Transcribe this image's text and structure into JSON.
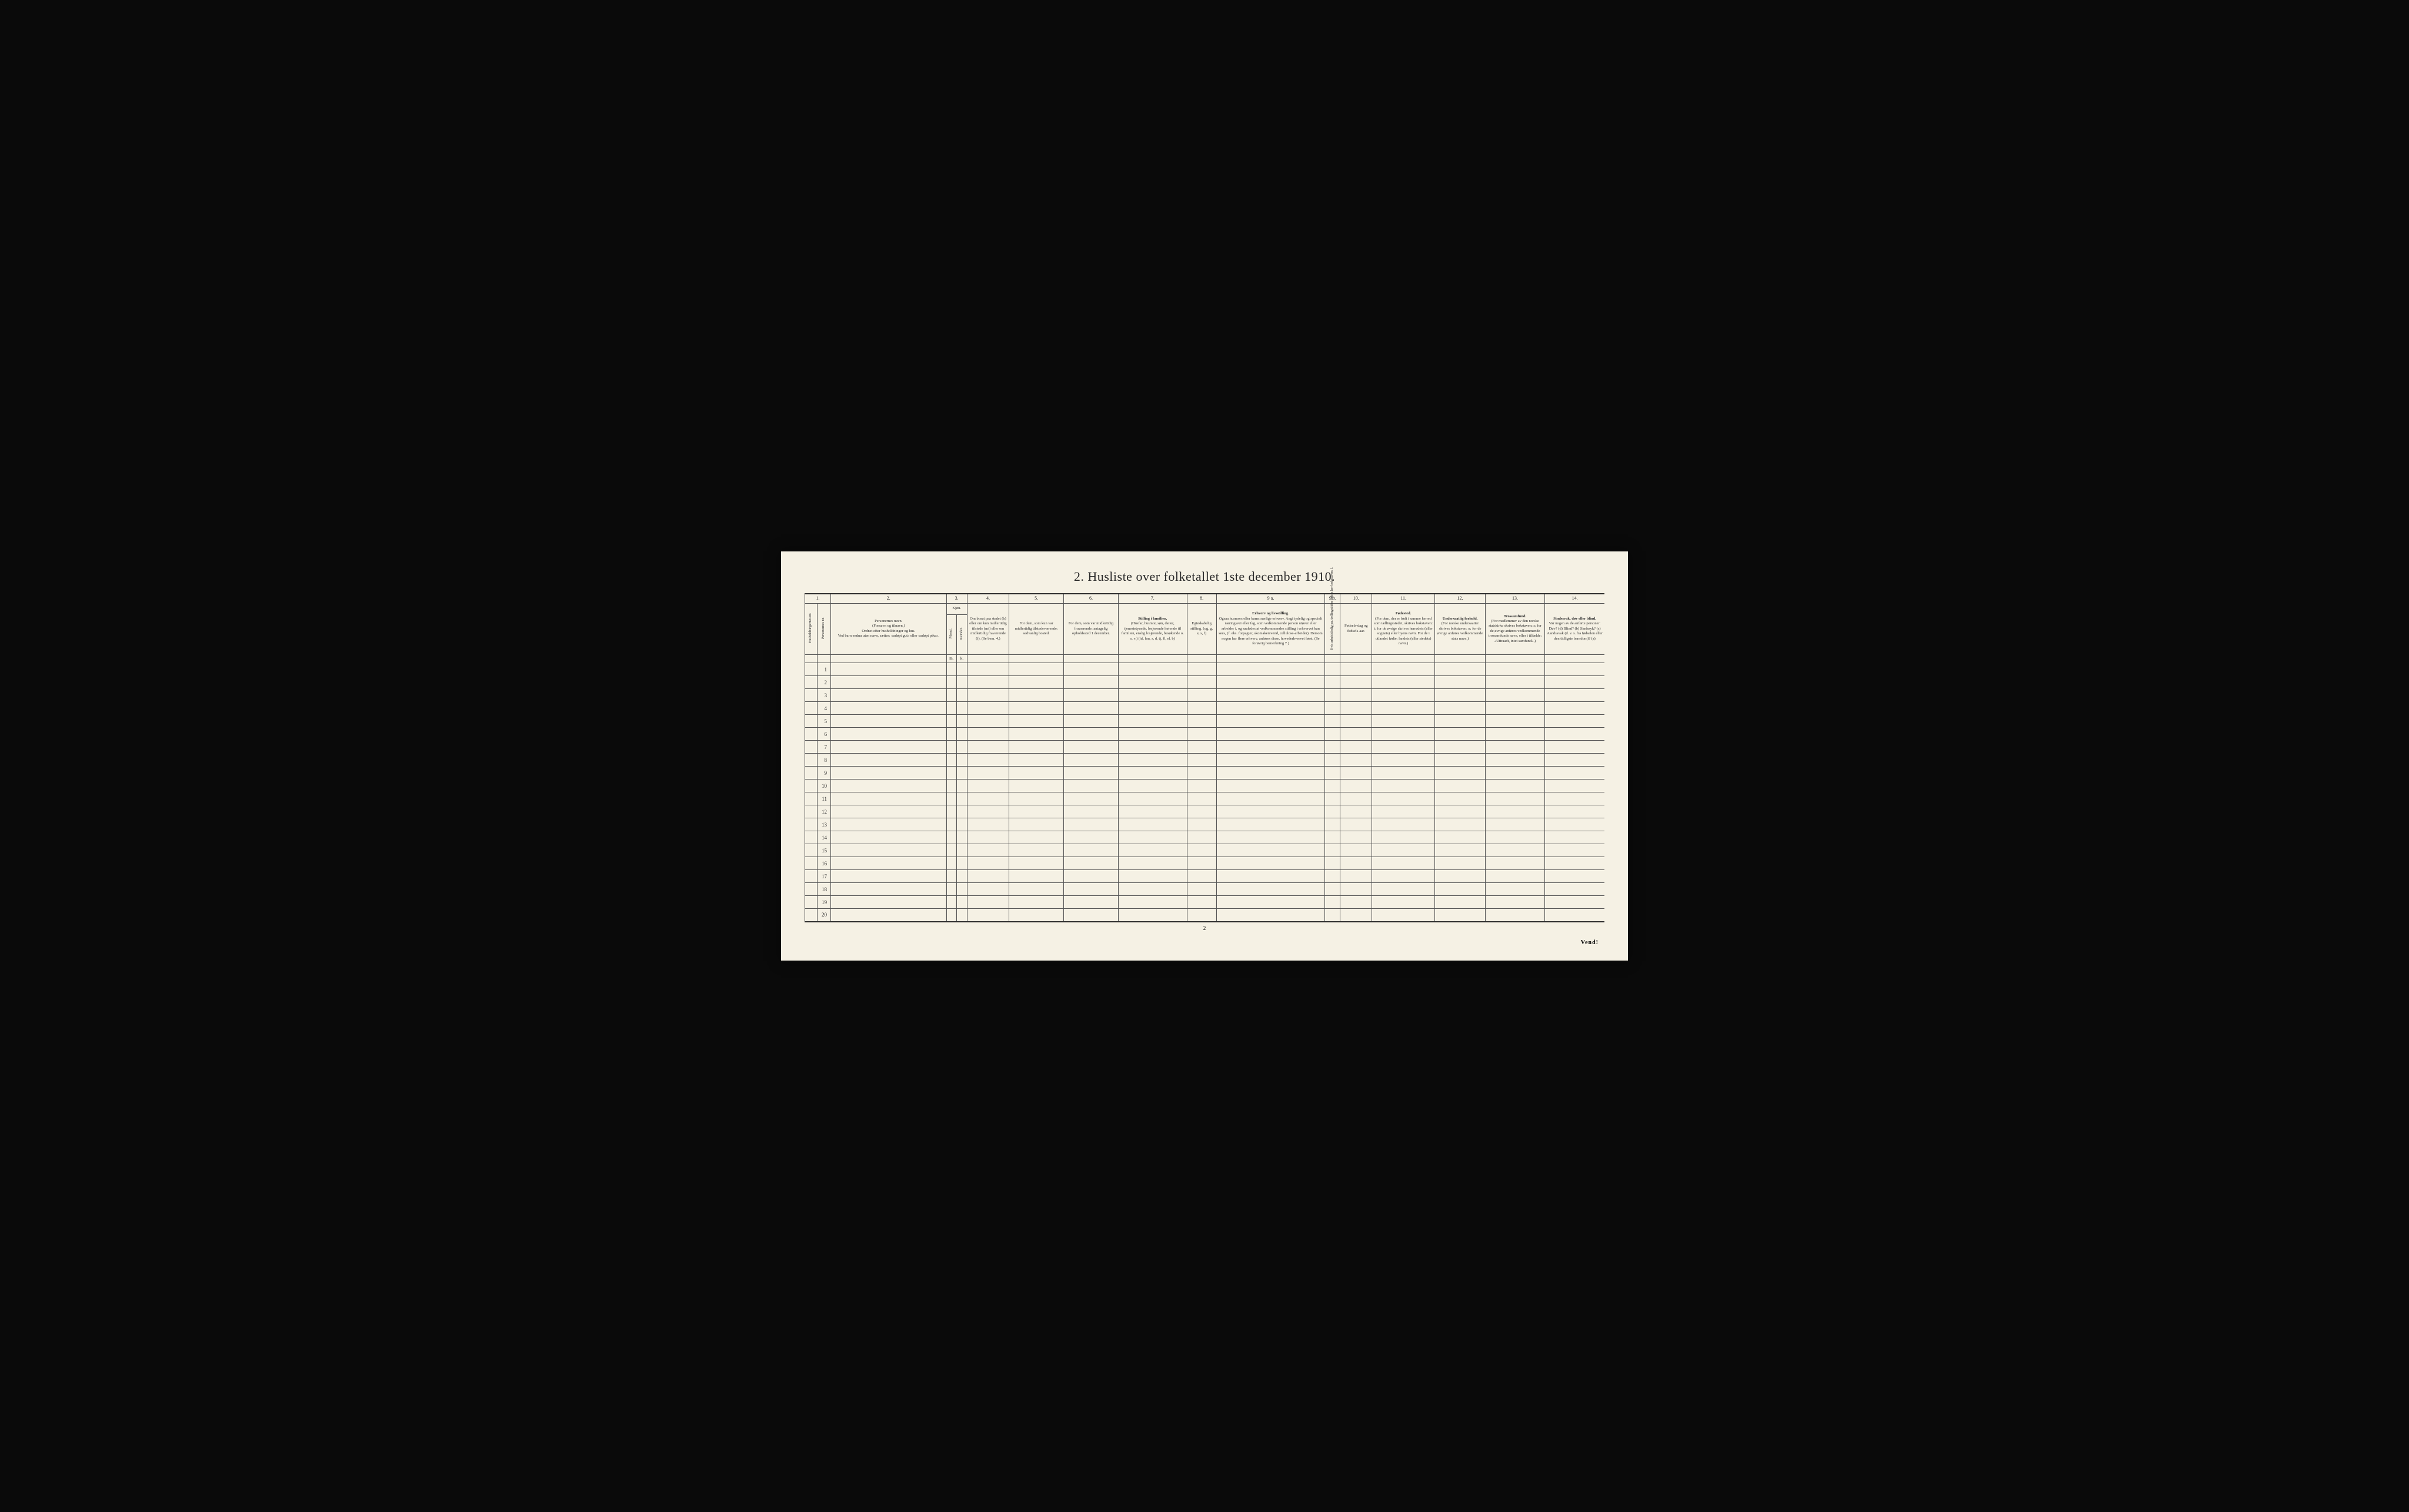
{
  "title": "2.  Husliste over folketallet 1ste december 1910.",
  "page_number": "2",
  "footer_text": "Vend!",
  "columns": {
    "nums": [
      "1.",
      "2.",
      "3.",
      "4.",
      "5.",
      "6.",
      "7.",
      "8.",
      "9 a.",
      "9 b.",
      "10.",
      "11.",
      "12.",
      "13.",
      "14."
    ],
    "col1_vert1": "Husholdningernes nr.",
    "col1_vert2": "Personernes nr.",
    "col2": {
      "title": "Personernes navn.",
      "sub1": "(Fornavn og tilnavn.)",
      "sub2": "Ordnet efter husholdninger og hus.",
      "sub3": "Ved barn endnu uten navn, sættes: «udøpt gut» eller «udøpt pike»."
    },
    "col3": {
      "title": "Kjøn.",
      "vert1": "Mænd.",
      "vert2": "Kvinder.",
      "sub_m": "m.",
      "sub_k": "k."
    },
    "col4": "Om bosat paa stedet (b) eller om kun midlertidig tilstede (mt) eller om midlertidig fraværende (f). (Se bem. 4.)",
    "col5": "For dem, som kun var midlertidig tilstedeværende: sedvanlig bosted.",
    "col6": "For dem, som var midlertidig fraværende: antagelig opholdssted 1 december.",
    "col7": {
      "title": "Stilling i familien.",
      "body": "(Husfar, husmor, søn, datter, tjenestetyende, losjerende hørende til familien, enslig losjerende, besøkende o. s. v.) (hf, hm, s, d, tj, fl, el, b)",
      "note": "(Se bem. 6.)"
    },
    "col8": "Egteskabelig stilling. (ug, g, e, s, f)",
    "col9a": {
      "title": "Erhverv og livsstilling.",
      "body": "Ogsaa husmors eller barns særlige erhverv. Angi tydelig og specielt næringsvei eller fag, som vedkommende person utøver eller arbeider i, og saaledes at vedkommendes stilling i erhvervet kan sees, (f. eks. forpagter, skomakersvend, cellulose-arbeider). Dersom nogen har flere erhverv, anføres disse, hovederhvervet først. (Se forøvrig bemerkning 7.)"
    },
    "col9b_vert": "Hvis arbeidsledig pa. tællingstiden sættes her bokstaven: l.",
    "col10": "Fødsels-dag og fødsels-aar.",
    "col11": {
      "title": "Fødested.",
      "body": "(For dem, der er født i samme herred som tællingsstedet, skrives bokstaven: t; for de øvrige skrives herredets (eller sognets) eller byens navn. For de i utlandet fødte: landets (eller stedets) navn.)"
    },
    "col12": {
      "title": "Undersaatlig forhold.",
      "body": "(For norske undersaatter skrives bokstaven: n; for de øvrige anføres vedkommende stats navn.)"
    },
    "col13": {
      "title": "Trossamfund.",
      "body": "(For medlemmer av den norske statskirke skrives bokstaven: s; for de øvrige anføres vedkommende trossamfunds navn, eller i tilfælde: «Uttraadt, intet samfund».)"
    },
    "col14": {
      "title": "Sindssvak, døv eller blind.",
      "body": "Var nogen av de anførte personer: Døv? (d) Blind? (b) Sindssyk? (s) Aandssvak (d. v. s. fra fødselen eller den tidligste barndom)? (a)"
    }
  },
  "row_count": 20,
  "styling": {
    "background": "#f5f1e4",
    "border_color": "#555555",
    "text_color": "#2a2a2a",
    "page_bg": "#0a0a0a",
    "title_fontsize": 22,
    "header_fontsize": 6.5,
    "body_row_height": 22
  }
}
